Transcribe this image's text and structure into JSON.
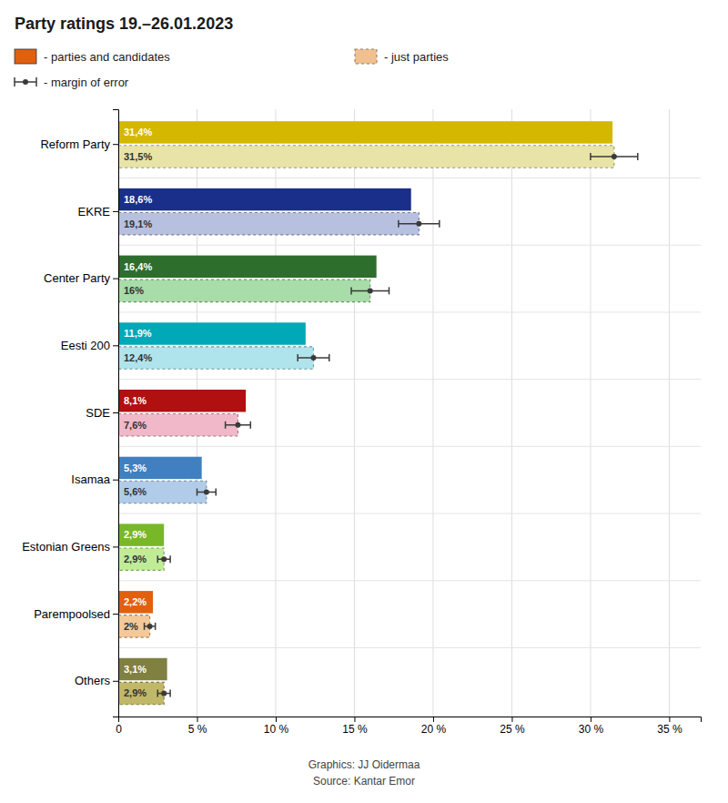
{
  "chart_data": {
    "type": "bar",
    "orientation": "horizontal",
    "title": "Party ratings 19.–26.01.2023",
    "categories": [
      "Reform Party",
      "EKRE",
      "Center Party",
      "Eesti 200",
      "SDE",
      "Isamaa",
      "Estonian Greens",
      "Parempoolsed",
      "Others"
    ],
    "series": [
      {
        "name": "- parties and candidates",
        "color": "#e06010",
        "colors": [
          "#d4b800",
          "#1a2f8a",
          "#2d6e2d",
          "#00a8b8",
          "#b01010",
          "#4080c0",
          "#78b828",
          "#e06010",
          "#808040"
        ],
        "values": [
          31.4,
          18.6,
          16.4,
          11.9,
          8.1,
          5.3,
          2.9,
          2.2,
          3.1
        ],
        "value_labels": [
          "31,4%",
          "18,6%",
          "16,4%",
          "11,9%",
          "8,1%",
          "5,3%",
          "2,9%",
          "2,2%",
          "3,1%"
        ]
      },
      {
        "name": "- just parties",
        "color": "#f0c090",
        "line_style": "dotted",
        "colors": [
          "#e8e4a8",
          "#b8c0e0",
          "#a8dca8",
          "#b0e4ec",
          "#f0b8c8",
          "#b0cce8",
          "#c0ec98",
          "#f4c898",
          "#c0b868"
        ],
        "values": [
          31.5,
          19.1,
          16.0,
          12.4,
          7.6,
          5.6,
          2.9,
          2.0,
          2.9
        ],
        "value_labels": [
          "31,5%",
          "19,1%",
          "16%",
          "12,4%",
          "7,6%",
          "5,6%",
          "2,9%",
          "2%",
          "2,9%"
        ],
        "errors": [
          1.5,
          1.3,
          1.2,
          1.0,
          0.8,
          0.6,
          0.4,
          0.35,
          0.4
        ],
        "error_name": "- margin of error"
      }
    ],
    "xlim": [
      0,
      37
    ],
    "xticks": [
      0,
      {
        "value": 5,
        "label": "5 %"
      },
      {
        "value": 10,
        "label": "10 %"
      },
      {
        "value": 15,
        "label": "15 %"
      },
      {
        "value": 20,
        "label": "20 %"
      },
      {
        "value": 25,
        "label": "25 %"
      },
      {
        "value": 30,
        "label": "30 %"
      },
      {
        "value": 35,
        "label": "35 %"
      }
    ],
    "grid": true,
    "data_labels": true,
    "legend": "top",
    "annotations": [
      "Graphics: JJ Oidermaa",
      "Source: Kantar Emor"
    ]
  }
}
